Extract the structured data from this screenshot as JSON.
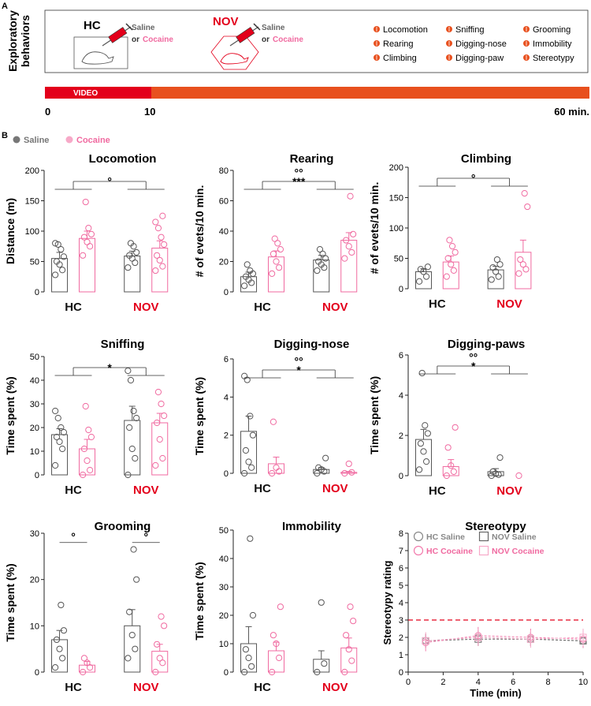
{
  "colors": {
    "saline": "#555555",
    "cocaine": "#f06aa0",
    "red": "#e3001b",
    "orange": "#e8501e",
    "bullet": "#e8501e"
  },
  "panelA": {
    "label": "A",
    "side_title_line1": "Exploratory",
    "side_title_line2": "behaviors",
    "hc": {
      "label": "HC",
      "drug_line1": "Saline",
      "drug_or": "or",
      "drug_line2": "Cocaine"
    },
    "nov": {
      "label": "NOV",
      "drug_line1": "Saline",
      "drug_or": "or",
      "drug_line2": "Cocaine"
    },
    "behaviors": [
      "Locomotion",
      "Sniffing",
      "Grooming",
      "Rearing",
      "Digging-nose",
      "Immobility",
      "Climbing",
      "Digging-paw",
      "Stereotypy"
    ],
    "timeline": {
      "video_label": "VIDEO",
      "t0": "0",
      "t10": "10",
      "t60": "60 min."
    }
  },
  "panelB": {
    "label": "B",
    "legend_saline": "Saline",
    "legend_cocaine": "Cocaine"
  },
  "chart_data": [
    {
      "type": "bar",
      "title": "Locomotion",
      "ylabel": "Distance (m)",
      "yticks": [
        0,
        50,
        100,
        150,
        200
      ],
      "ylim": [
        0,
        200
      ],
      "groups": [
        "HC",
        "NOV"
      ],
      "series": [
        "Saline",
        "Cocaine"
      ],
      "means": [
        [
          55,
          88
        ],
        [
          59,
          72
        ]
      ],
      "sem": [
        [
          10,
          12
        ],
        [
          8,
          12
        ]
      ],
      "points": [
        [
          [
            28,
            36,
            45,
            50,
            58,
            70,
            78,
            80
          ],
          [
            60,
            75,
            82,
            90,
            95,
            105,
            148
          ]
        ],
        [
          [
            40,
            48,
            55,
            60,
            65,
            75,
            80
          ],
          [
            35,
            42,
            52,
            60,
            78,
            90,
            105,
            115,
            125
          ]
        ]
      ],
      "annotation": "°"
    },
    {
      "type": "bar",
      "title": "Rearing",
      "ylabel": "# of evets/10 min.",
      "yticks": [
        0,
        20,
        40,
        60,
        80
      ],
      "ylim": [
        0,
        80
      ],
      "groups": [
        "HC",
        "NOV"
      ],
      "series": [
        "Saline",
        "Cocaine"
      ],
      "means": [
        [
          10,
          23
        ],
        [
          21,
          34
        ]
      ],
      "sem": [
        [
          3,
          4
        ],
        [
          3,
          5
        ]
      ],
      "points": [
        [
          [
            4,
            6,
            8,
            10,
            12,
            14,
            18
          ],
          [
            12,
            16,
            20,
            25,
            28,
            32,
            35
          ]
        ],
        [
          [
            14,
            16,
            18,
            20,
            22,
            25,
            28
          ],
          [
            22,
            26,
            30,
            34,
            38,
            63
          ]
        ]
      ],
      "annotation": "°°\n***"
    },
    {
      "type": "bar",
      "title": "Climbing",
      "ylabel": "# of evets/10 min.",
      "yticks": [
        0,
        50,
        100,
        150,
        200
      ],
      "ylim": [
        0,
        200
      ],
      "groups": [
        "HC",
        "NOV"
      ],
      "series": [
        "Saline",
        "Cocaine"
      ],
      "means": [
        [
          28,
          44
        ],
        [
          31,
          60
        ]
      ],
      "sem": [
        [
          5,
          10
        ],
        [
          6,
          20
        ]
      ],
      "points": [
        [
          [
            12,
            20,
            28,
            32,
            36
          ],
          [
            20,
            30,
            40,
            50,
            60,
            70,
            80
          ]
        ],
        [
          [
            15,
            20,
            28,
            35,
            40,
            48
          ],
          [
            25,
            32,
            40,
            48,
            135,
            157
          ]
        ]
      ],
      "annotation": "°"
    },
    {
      "type": "bar",
      "title": "Sniffing",
      "ylabel": "Time spent (%)",
      "yticks": [
        0,
        10,
        20,
        30,
        40,
        50
      ],
      "ylim": [
        0,
        50
      ],
      "groups": [
        "HC",
        "NOV"
      ],
      "series": [
        "Saline",
        "Cocaine"
      ],
      "means": [
        [
          17,
          11
        ],
        [
          23,
          22
        ]
      ],
      "sem": [
        [
          2.5,
          4
        ],
        [
          6,
          4
        ]
      ],
      "points": [
        [
          [
            4,
            11,
            14,
            16,
            18,
            20,
            24,
            27
          ],
          [
            0,
            2,
            6,
            11,
            16,
            19,
            29
          ]
        ],
        [
          [
            0,
            7,
            11,
            20,
            24,
            27,
            40,
            44
          ],
          [
            4,
            7,
            15,
            22,
            25,
            30,
            35
          ]
        ]
      ],
      "annotation": "*"
    },
    {
      "type": "bar",
      "title": "Digging-nose",
      "ylabel": "Time spent (%)",
      "yticks": [
        0,
        2,
        4,
        6
      ],
      "ylim": [
        0,
        6
      ],
      "groups": [
        "HC",
        "NOV"
      ],
      "series": [
        "Saline",
        "Cocaine"
      ],
      "means": [
        [
          2.2,
          0.5
        ],
        [
          0.2,
          0.05
        ]
      ],
      "sem": [
        [
          0.8,
          0.35
        ],
        [
          0.1,
          0.05
        ]
      ],
      "points": [
        [
          [
            0,
            0.3,
            0.6,
            1.2,
            2.0,
            3.0,
            4.9,
            5.1
          ],
          [
            0,
            0.1,
            0.3,
            2.7
          ]
        ],
        [
          [
            0,
            0.1,
            0.2,
            0.3,
            0.8
          ],
          [
            0,
            0.05,
            0.5
          ]
        ]
      ],
      "annotation": "°°\n*"
    },
    {
      "type": "bar",
      "title": "Digging-paws",
      "ylabel": "Time spent (%)",
      "yticks": [
        0,
        2,
        4,
        6
      ],
      "ylim": [
        0,
        6
      ],
      "groups": [
        "HC",
        "NOV"
      ],
      "series": [
        "Saline",
        "Cocaine"
      ],
      "means": [
        [
          1.8,
          0.45
        ],
        [
          0.2,
          0.0
        ]
      ],
      "sem": [
        [
          0.5,
          0.35
        ],
        [
          0.15,
          0.0
        ]
      ],
      "points": [
        [
          [
            0.3,
            0.7,
            1.2,
            1.6,
            2.1,
            2.5,
            5.1
          ],
          [
            0,
            0.2,
            0.5,
            1.4,
            2.4
          ]
        ],
        [
          [
            0,
            0.05,
            0.1,
            0.2,
            0.9
          ],
          [
            0
          ]
        ]
      ],
      "annotation": "°°\n*"
    },
    {
      "type": "bar",
      "title": "Grooming",
      "ylabel": "Time spent (%)",
      "yticks": [
        0,
        10,
        20,
        30
      ],
      "ylim": [
        0,
        30
      ],
      "groups": [
        "HC",
        "NOV"
      ],
      "series": [
        "Saline",
        "Cocaine"
      ],
      "means": [
        [
          7,
          1.5
        ],
        [
          10,
          4.5
        ]
      ],
      "sem": [
        [
          2,
          0.8
        ],
        [
          3.5,
          1.5
        ]
      ],
      "points": [
        [
          [
            1,
            3,
            5,
            7,
            9,
            14.5
          ],
          [
            0,
            1,
            2,
            3
          ]
        ],
        [
          [
            3,
            5,
            8,
            13,
            20,
            26.5
          ],
          [
            0,
            2,
            3,
            6,
            10,
            12
          ]
        ]
      ],
      "annotation_hc": "°",
      "annotation_nov": "°"
    },
    {
      "type": "bar",
      "title": "Immobility",
      "ylabel": "Time spent (%)",
      "yticks": [
        0,
        10,
        20,
        30,
        40,
        50
      ],
      "ylim": [
        0,
        50
      ],
      "groups": [
        "HC",
        "NOV"
      ],
      "series": [
        "Saline",
        "Cocaine"
      ],
      "means": [
        [
          10,
          7.5
        ],
        [
          4.5,
          8.5
        ]
      ],
      "sem": [
        [
          6,
          3
        ],
        [
          3,
          3.5
        ]
      ],
      "points": [
        [
          [
            0,
            2,
            5,
            8,
            20,
            47
          ],
          [
            0,
            5,
            10,
            13,
            23
          ]
        ],
        [
          [
            0,
            3,
            24.5
          ],
          [
            0,
            4,
            8,
            13,
            18,
            23
          ]
        ]
      ]
    },
    {
      "type": "line",
      "title": "Stereotypy",
      "xlabel": "Time (min)",
      "ylabel": "Stereotypy rating",
      "x": [
        1,
        4,
        7,
        10
      ],
      "xticks": [
        0,
        2,
        4,
        6,
        8,
        10
      ],
      "xlim": [
        0,
        10
      ],
      "yticks": [
        0,
        1,
        2,
        3,
        4,
        5,
        6,
        7,
        8
      ],
      "ylim": [
        0,
        8
      ],
      "threshold": 3,
      "series": [
        {
          "name": "HC Saline",
          "values": [
            1.8,
            2.0,
            1.9,
            1.8
          ],
          "err": [
            0.4,
            0.4,
            0.4,
            0.4
          ]
        },
        {
          "name": "NOV Saline",
          "values": [
            1.8,
            1.9,
            1.9,
            1.8
          ],
          "err": [
            0.4,
            0.4,
            0.4,
            0.4
          ]
        },
        {
          "name": "HC Cocaine",
          "values": [
            1.7,
            2.1,
            2.0,
            1.9
          ],
          "err": [
            0.5,
            0.5,
            0.5,
            0.5
          ]
        },
        {
          "name": "NOV Cocaine",
          "values": [
            1.8,
            2.0,
            1.9,
            2.0
          ],
          "err": [
            0.5,
            0.5,
            0.5,
            0.5
          ]
        }
      ]
    }
  ]
}
